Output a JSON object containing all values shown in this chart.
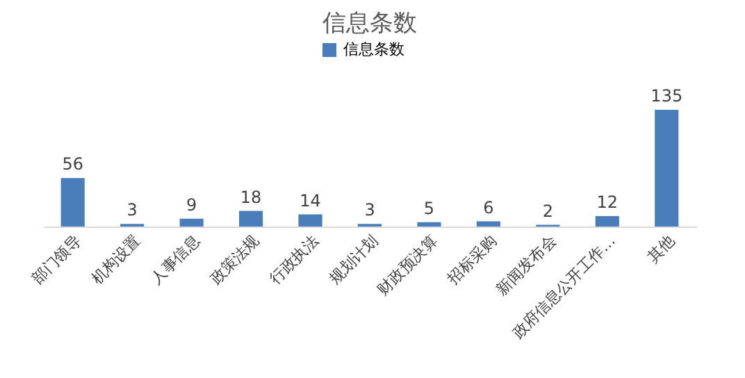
{
  "chart_data": {
    "type": "bar",
    "title": "信息条数",
    "categories": [
      "部门领导",
      "机构设置",
      "人事信息",
      "政策法规",
      "行政执法",
      "规划计划",
      "财政预决算",
      "招标采购",
      "新闻发布会",
      "政府信息公开工作…",
      "其他"
    ],
    "series": [
      {
        "name": "信息条数",
        "color": "#4a7ebb",
        "values": [
          56,
          3,
          9,
          18,
          14,
          3,
          5,
          6,
          2,
          12,
          135
        ]
      }
    ],
    "data_labels": true,
    "legend": "top",
    "grid": false
  }
}
